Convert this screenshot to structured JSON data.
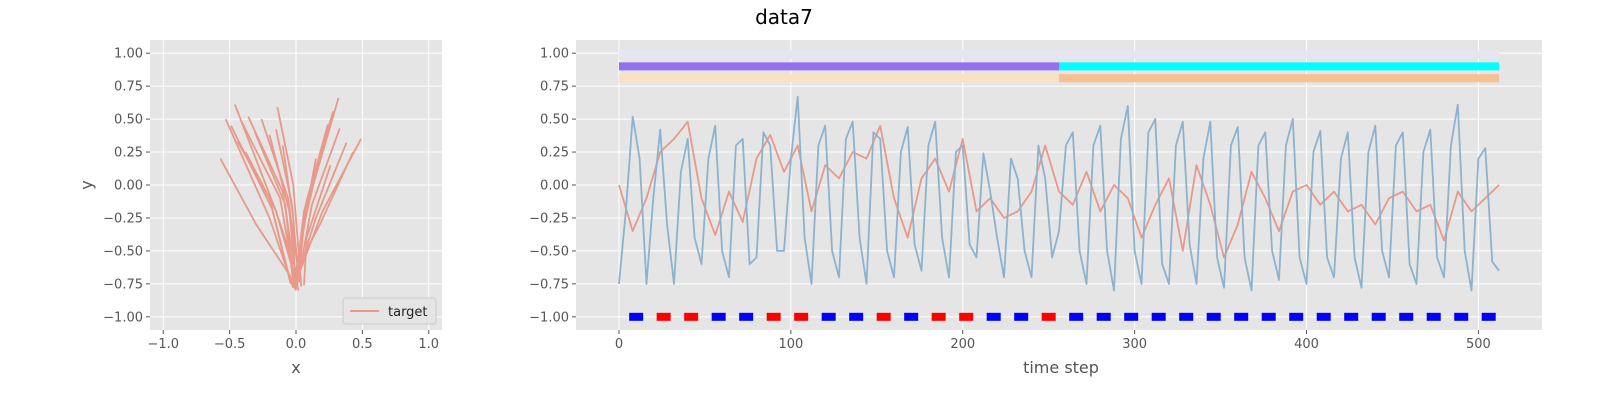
{
  "figure": {
    "title": "data7"
  },
  "colors": {
    "target": "#E8998A",
    "red_line": "#E8998A",
    "blue_line": "#8BB3CF",
    "band_light": "#E6E6F2",
    "band_purple": "#9370EE",
    "band_cyan": "#00FFFF",
    "band_peach_light": "#FBE0C4",
    "band_peach": "#F8C08E",
    "marker_red": "#FF0000",
    "marker_blue": "#0000FF",
    "panel_bg": "#E5E5E5",
    "grid": "#FFFFFF"
  },
  "chart_data": [
    {
      "type": "line",
      "name": "trajectory",
      "xlabel": "x",
      "ylabel": "y",
      "xlim": [
        -1.1,
        1.1
      ],
      "ylim": [
        -1.1,
        1.1
      ],
      "xticks": [
        -1.0,
        -0.5,
        0.0,
        0.5,
        1.0
      ],
      "xtick_labels": [
        "−1.0",
        "−0.5",
        "0.0",
        "0.5",
        "1.0"
      ],
      "yticks": [
        -1.0,
        -0.75,
        -0.5,
        -0.25,
        0.0,
        0.25,
        0.5,
        0.75,
        1.0
      ],
      "ytick_labels": [
        "−1.00",
        "−0.75",
        "−0.50",
        "−0.25",
        "0.00",
        "0.25",
        "0.50",
        "0.75",
        "1.00"
      ],
      "legend": [
        {
          "label": "target",
          "color_key": "target"
        }
      ],
      "legend_position": "lower-right",
      "grid": true,
      "strokes": [
        [
          [
            -0.57,
            0.2
          ],
          [
            -0.3,
            -0.3
          ],
          [
            -0.05,
            -0.68
          ],
          [
            0.0,
            -0.8
          ]
        ],
        [
          [
            -0.53,
            0.5
          ],
          [
            -0.2,
            -0.25
          ],
          [
            -0.02,
            -0.78
          ]
        ],
        [
          [
            -0.46,
            0.61
          ],
          [
            -0.15,
            -0.2
          ],
          [
            0.02,
            -0.8
          ]
        ],
        [
          [
            -0.49,
            0.45
          ],
          [
            -0.18,
            -0.18
          ],
          [
            -0.04,
            -0.75
          ]
        ],
        [
          [
            -0.41,
            0.48
          ],
          [
            -0.12,
            -0.1
          ],
          [
            0.0,
            -0.79
          ]
        ],
        [
          [
            -0.36,
            0.52
          ],
          [
            -0.1,
            -0.05
          ],
          [
            0.01,
            -0.77
          ]
        ],
        [
          [
            -0.31,
            0.4
          ],
          [
            -0.08,
            -0.15
          ],
          [
            -0.02,
            -0.76
          ]
        ],
        [
          [
            -0.26,
            0.5
          ],
          [
            -0.06,
            -0.1
          ],
          [
            0.03,
            -0.74
          ]
        ],
        [
          [
            -0.2,
            0.38
          ],
          [
            -0.05,
            -0.2
          ],
          [
            0.0,
            -0.73
          ]
        ],
        [
          [
            -0.15,
            0.42
          ],
          [
            -0.03,
            -0.15
          ],
          [
            0.02,
            -0.72
          ]
        ],
        [
          [
            -0.1,
            0.3
          ],
          [
            -0.02,
            -0.25
          ],
          [
            -0.01,
            -0.7
          ]
        ],
        [
          [
            -0.14,
            0.59
          ],
          [
            -0.02,
            0.0
          ],
          [
            0.04,
            -0.77
          ]
        ],
        [
          [
            -0.44,
            0.33
          ],
          [
            -0.2,
            -0.1
          ],
          [
            -0.06,
            -0.66
          ]
        ],
        [
          [
            -0.38,
            0.25
          ],
          [
            -0.15,
            -0.2
          ],
          [
            -0.02,
            -0.6
          ]
        ],
        [
          [
            0.32,
            0.66
          ],
          [
            0.1,
            -0.1
          ],
          [
            -0.02,
            -0.76
          ]
        ],
        [
          [
            0.28,
            0.56
          ],
          [
            0.08,
            -0.12
          ],
          [
            0.0,
            -0.7
          ]
        ],
        [
          [
            0.33,
            0.43
          ],
          [
            0.12,
            -0.15
          ],
          [
            0.01,
            -0.75
          ]
        ],
        [
          [
            0.49,
            0.35
          ],
          [
            0.2,
            -0.2
          ],
          [
            0.02,
            -0.68
          ]
        ],
        [
          [
            0.38,
            0.32
          ],
          [
            0.15,
            -0.25
          ],
          [
            0.0,
            -0.72
          ]
        ],
        [
          [
            0.24,
            0.46
          ],
          [
            0.06,
            -0.2
          ],
          [
            -0.01,
            -0.78
          ]
        ],
        [
          [
            0.2,
            0.3
          ],
          [
            0.06,
            -0.3
          ],
          [
            0.03,
            -0.6
          ]
        ],
        [
          [
            0.43,
            0.25
          ],
          [
            0.18,
            -0.3
          ],
          [
            0.05,
            -0.55
          ]
        ],
        [
          [
            0.26,
            0.15
          ],
          [
            0.08,
            -0.4
          ],
          [
            0.06,
            -0.76
          ]
        ],
        [
          [
            0.15,
            0.2
          ],
          [
            0.04,
            -0.4
          ],
          [
            0.0,
            -0.78
          ]
        ]
      ]
    },
    {
      "type": "line",
      "name": "timeseries",
      "xlabel": "time step",
      "ylabel": "",
      "xlim": [
        -25,
        537
      ],
      "ylim": [
        -1.1,
        1.1
      ],
      "xticks": [
        0,
        100,
        200,
        300,
        400,
        500
      ],
      "xtick_labels": [
        "0",
        "100",
        "200",
        "300",
        "400",
        "500"
      ],
      "yticks": [
        -1.0,
        -0.75,
        -0.5,
        -0.25,
        0.0,
        0.25,
        0.5,
        0.75,
        1.0
      ],
      "ytick_labels": [
        "−1.00",
        "−0.75",
        "−0.50",
        "−0.25",
        "0.00",
        "0.25",
        "0.50",
        "0.75",
        "1.00"
      ],
      "grid": true,
      "bands": [
        {
          "y": 0.99,
          "x0": 0,
          "x1": 512,
          "color_key": "band_light"
        },
        {
          "y": 0.9,
          "x0": 0,
          "x1": 256,
          "color_key": "band_purple"
        },
        {
          "y": 0.9,
          "x0": 256,
          "x1": 512,
          "color_key": "band_cyan"
        },
        {
          "y": 0.81,
          "x0": 0,
          "x1": 256,
          "color_key": "band_peach_light"
        },
        {
          "y": 0.81,
          "x0": 256,
          "x1": 512,
          "color_key": "band_peach"
        }
      ],
      "marker_y": -1.0,
      "markers": [
        {
          "x": 10,
          "color_key": "marker_blue"
        },
        {
          "x": 26,
          "color_key": "marker_red"
        },
        {
          "x": 42,
          "color_key": "marker_red"
        },
        {
          "x": 58,
          "color_key": "marker_blue"
        },
        {
          "x": 74,
          "color_key": "marker_blue"
        },
        {
          "x": 90,
          "color_key": "marker_red"
        },
        {
          "x": 106,
          "color_key": "marker_red"
        },
        {
          "x": 122,
          "color_key": "marker_blue"
        },
        {
          "x": 138,
          "color_key": "marker_blue"
        },
        {
          "x": 154,
          "color_key": "marker_red"
        },
        {
          "x": 170,
          "color_key": "marker_blue"
        },
        {
          "x": 186,
          "color_key": "marker_red"
        },
        {
          "x": 202,
          "color_key": "marker_red"
        },
        {
          "x": 218,
          "color_key": "marker_blue"
        },
        {
          "x": 234,
          "color_key": "marker_blue"
        },
        {
          "x": 250,
          "color_key": "marker_red"
        },
        {
          "x": 266,
          "color_key": "marker_blue"
        },
        {
          "x": 282,
          "color_key": "marker_blue"
        },
        {
          "x": 298,
          "color_key": "marker_blue"
        },
        {
          "x": 314,
          "color_key": "marker_blue"
        },
        {
          "x": 330,
          "color_key": "marker_blue"
        },
        {
          "x": 346,
          "color_key": "marker_blue"
        },
        {
          "x": 362,
          "color_key": "marker_blue"
        },
        {
          "x": 378,
          "color_key": "marker_blue"
        },
        {
          "x": 394,
          "color_key": "marker_blue"
        },
        {
          "x": 410,
          "color_key": "marker_blue"
        },
        {
          "x": 426,
          "color_key": "marker_blue"
        },
        {
          "x": 442,
          "color_key": "marker_blue"
        },
        {
          "x": 458,
          "color_key": "marker_blue"
        },
        {
          "x": 474,
          "color_key": "marker_blue"
        },
        {
          "x": 490,
          "color_key": "marker_blue"
        },
        {
          "x": 506,
          "color_key": "marker_blue"
        }
      ],
      "series": [
        {
          "name": "red",
          "color_key": "red_line",
          "x": [
            0,
            8,
            16,
            24,
            32,
            40,
            48,
            56,
            64,
            72,
            80,
            88,
            96,
            104,
            112,
            120,
            128,
            136,
            144,
            152,
            160,
            168,
            176,
            184,
            192,
            200,
            208,
            216,
            224,
            232,
            240,
            248,
            256,
            264,
            272,
            280,
            288,
            296,
            304,
            312,
            320,
            328,
            336,
            344,
            352,
            360,
            368,
            376,
            384,
            392,
            400,
            408,
            416,
            424,
            432,
            440,
            448,
            456,
            464,
            472,
            480,
            488,
            496,
            504,
            512
          ],
          "values": [
            0.0,
            -0.35,
            -0.1,
            0.25,
            0.35,
            0.48,
            -0.1,
            -0.38,
            -0.05,
            -0.28,
            0.2,
            0.38,
            0.1,
            0.3,
            -0.2,
            0.15,
            0.05,
            0.25,
            0.2,
            0.45,
            -0.1,
            -0.4,
            0.05,
            0.2,
            -0.05,
            0.35,
            -0.2,
            -0.1,
            -0.25,
            -0.2,
            -0.05,
            0.3,
            -0.05,
            -0.15,
            0.1,
            -0.2,
            0.0,
            -0.1,
            -0.4,
            -0.15,
            0.05,
            -0.5,
            0.15,
            -0.15,
            -0.55,
            -0.3,
            0.1,
            -0.1,
            -0.35,
            -0.05,
            0.0,
            -0.15,
            -0.05,
            -0.2,
            -0.15,
            -0.3,
            -0.1,
            -0.05,
            -0.2,
            -0.15,
            -0.42,
            -0.05,
            -0.2,
            -0.1,
            0.0
          ]
        },
        {
          "name": "blue",
          "color_key": "blue_line",
          "x": [
            0,
            4,
            8,
            12,
            16,
            20,
            24,
            28,
            32,
            36,
            40,
            44,
            48,
            52,
            56,
            60,
            64,
            68,
            72,
            76,
            80,
            84,
            88,
            92,
            96,
            100,
            104,
            108,
            112,
            116,
            120,
            124,
            128,
            132,
            136,
            140,
            144,
            148,
            152,
            156,
            160,
            164,
            168,
            172,
            176,
            180,
            184,
            188,
            192,
            196,
            200,
            204,
            208,
            212,
            216,
            220,
            224,
            228,
            232,
            236,
            240,
            244,
            248,
            252,
            256,
            260,
            264,
            268,
            272,
            276,
            280,
            284,
            288,
            292,
            296,
            300,
            304,
            308,
            312,
            316,
            320,
            324,
            328,
            332,
            336,
            340,
            344,
            348,
            352,
            356,
            360,
            364,
            368,
            372,
            376,
            380,
            384,
            388,
            392,
            396,
            400,
            404,
            408,
            412,
            416,
            420,
            424,
            428,
            432,
            436,
            440,
            444,
            448,
            452,
            456,
            460,
            464,
            468,
            472,
            476,
            480,
            484,
            488,
            492,
            496,
            500,
            504,
            508,
            512
          ],
          "values": [
            -0.75,
            -0.2,
            0.52,
            0.2,
            -0.75,
            -0.1,
            0.42,
            -0.3,
            -0.75,
            0.1,
            0.35,
            -0.4,
            -0.6,
            0.2,
            0.45,
            -0.5,
            -0.7,
            0.3,
            0.35,
            -0.6,
            -0.55,
            0.4,
            0.3,
            -0.5,
            -0.5,
            0.2,
            0.67,
            -0.4,
            -0.75,
            0.3,
            0.45,
            -0.5,
            -0.7,
            0.35,
            0.48,
            -0.4,
            -0.75,
            0.4,
            0.35,
            -0.5,
            -0.7,
            0.25,
            0.44,
            -0.45,
            -0.65,
            0.3,
            0.48,
            -0.4,
            -0.7,
            0.25,
            0.3,
            -0.45,
            -0.55,
            0.24,
            -0.05,
            -0.4,
            -0.7,
            0.2,
            0.05,
            -0.5,
            -0.7,
            0.3,
            0.05,
            -0.55,
            -0.35,
            0.3,
            0.4,
            -0.5,
            -0.75,
            0.3,
            0.45,
            -0.5,
            -0.8,
            0.35,
            0.6,
            -0.5,
            -0.75,
            0.4,
            0.5,
            -0.6,
            -0.75,
            0.3,
            0.48,
            -0.45,
            -0.75,
            0.2,
            0.48,
            -0.55,
            -0.78,
            0.3,
            0.44,
            -0.55,
            -0.8,
            0.3,
            0.4,
            -0.5,
            -0.72,
            0.3,
            0.5,
            -0.55,
            -0.75,
            0.25,
            0.41,
            -0.55,
            -0.7,
            0.2,
            0.4,
            -0.55,
            -0.78,
            0.25,
            0.45,
            -0.5,
            -0.7,
            0.3,
            0.4,
            -0.6,
            -0.75,
            0.25,
            0.42,
            -0.55,
            -0.7,
            0.3,
            0.61,
            -0.5,
            -0.8,
            0.2,
            0.28,
            -0.58,
            -0.65
          ]
        }
      ]
    }
  ]
}
